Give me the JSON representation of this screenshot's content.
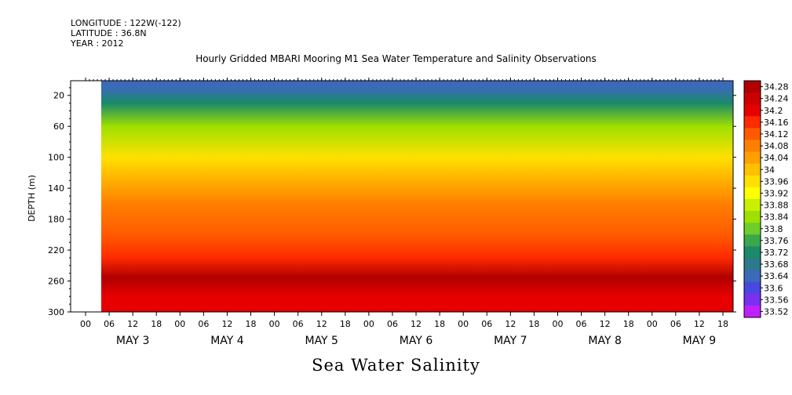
{
  "header": {
    "longitude": "LONGITUDE : 122W(-122)",
    "latitude": "LATITUDE : 36.8N",
    "year": "YEAR : 2012"
  },
  "chart_data": {
    "type": "heatmap",
    "title": "Hourly Gridded MBARI Mooring M1 Sea Water Temperature and Salinity Observations",
    "variable_title": "Sea Water Salinity",
    "ylabel": "DEPTH (m)",
    "ylim": [
      300,
      1
    ],
    "y_ticks": [
      20,
      60,
      100,
      140,
      180,
      220,
      260,
      300
    ],
    "x_hour_ticks": [
      "00",
      "06",
      "12",
      "18",
      "00",
      "06",
      "12",
      "18",
      "00",
      "06",
      "12",
      "18",
      "00",
      "06",
      "12",
      "18",
      "00",
      "06",
      "12",
      "18",
      "00",
      "06",
      "12",
      "18",
      "00",
      "06",
      "12",
      "18"
    ],
    "x_day_labels": [
      "MAY  3",
      "MAY  4",
      "MAY  5",
      "MAY  6",
      "MAY  7",
      "MAY  8",
      "MAY  9"
    ],
    "colorbar": {
      "levels": [
        "34.28",
        "34.24",
        "34.2",
        "34.16",
        "34.12",
        "34.08",
        "34.04",
        "34",
        "33.96",
        "33.92",
        "33.88",
        "33.84",
        "33.8",
        "33.76",
        "33.72",
        "33.68",
        "33.64",
        "33.6",
        "33.56",
        "33.52"
      ],
      "colors": [
        "#b00000",
        "#cc0000",
        "#e60000",
        "#ff2a00",
        "#ff5a00",
        "#ff8000",
        "#ffa000",
        "#ffc000",
        "#ffe000",
        "#ffff00",
        "#c8f000",
        "#9ee000",
        "#6ecd2a",
        "#3aa84a",
        "#1a8a6a",
        "#2a7a8a",
        "#3a6ab8",
        "#4848e0",
        "#7a30f0",
        "#c020ff"
      ]
    },
    "profile": [
      {
        "depth": 10,
        "salinity": 33.64
      },
      {
        "depth": 30,
        "salinity": 33.72
      },
      {
        "depth": 60,
        "salinity": 33.86
      },
      {
        "depth": 100,
        "salinity": 33.96
      },
      {
        "depth": 120,
        "salinity": 34.0
      },
      {
        "depth": 160,
        "salinity": 34.1
      },
      {
        "depth": 200,
        "salinity": 34.12
      },
      {
        "depth": 230,
        "salinity": 34.18
      },
      {
        "depth": 255,
        "salinity": 34.28
      },
      {
        "depth": 280,
        "salinity": 34.22
      },
      {
        "depth": 300,
        "salinity": 34.2
      }
    ],
    "grid": false
  }
}
